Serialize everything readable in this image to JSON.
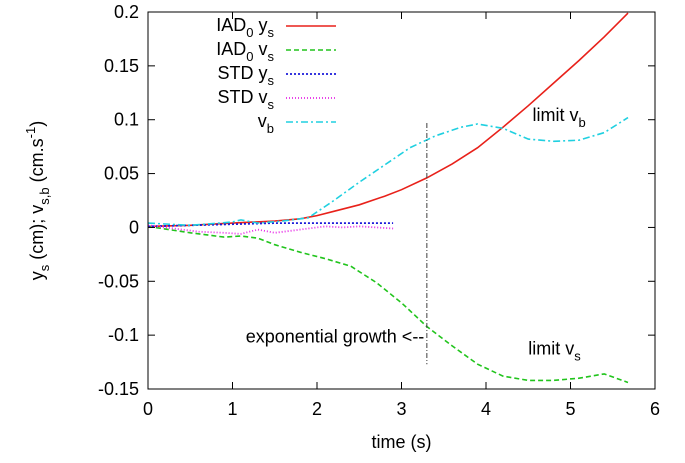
{
  "chart_data": {
    "type": "line",
    "xlabel": "time (s)",
    "ylabel": {
      "p1": "y",
      "p1_sub": "s",
      "p2": " (cm);  v",
      "p2_sub": "s,b",
      "p3": " (cm.s",
      "p3_sup": "-1",
      "p4": ")"
    },
    "xlim": [
      0,
      6
    ],
    "ylim": [
      -0.15,
      0.2
    ],
    "xticks": [
      0,
      1,
      2,
      3,
      4,
      5,
      6
    ],
    "yticks": [
      -0.15,
      -0.1,
      -0.05,
      0,
      0.05,
      0.1,
      0.15,
      0.2
    ],
    "ytick_labels": [
      "-0.15",
      "-0.1",
      "-0.05",
      "0",
      "0.05",
      "0.1",
      "0.15",
      "0.2"
    ],
    "grid": false,
    "legend_position": "top-left",
    "series": [
      {
        "name": {
          "main": "IAD",
          "sub0": "0",
          "mid": "  y",
          "sub1": "s"
        },
        "color": "#e8211a",
        "dash": "",
        "x": [
          0,
          0.5,
          1.0,
          1.5,
          1.8,
          2.0,
          2.2,
          2.5,
          2.8,
          3.0,
          3.3,
          3.6,
          3.9,
          4.2,
          4.5,
          4.8,
          5.1,
          5.4,
          5.68
        ],
        "y": [
          0.001,
          0.002,
          0.004,
          0.006,
          0.008,
          0.011,
          0.015,
          0.021,
          0.029,
          0.035,
          0.046,
          0.059,
          0.074,
          0.093,
          0.113,
          0.134,
          0.155,
          0.177,
          0.199
        ]
      },
      {
        "name": {
          "main": "IAD",
          "sub0": "0",
          "mid": "  v",
          "sub1": "s"
        },
        "color": "#21c41c",
        "dash": "5,3",
        "x": [
          0,
          0.5,
          0.9,
          1.1,
          1.3,
          1.5,
          1.8,
          2.1,
          2.4,
          2.7,
          3.0,
          3.3,
          3.6,
          3.9,
          4.2,
          4.5,
          4.8,
          5.1,
          5.4,
          5.68
        ],
        "y": [
          0.001,
          -0.005,
          -0.009,
          -0.008,
          -0.01,
          -0.016,
          -0.023,
          -0.029,
          -0.036,
          -0.051,
          -0.07,
          -0.092,
          -0.11,
          -0.127,
          -0.138,
          -0.142,
          -0.142,
          -0.14,
          -0.136,
          -0.144
        ]
      },
      {
        "name": {
          "main": "STD",
          "sub0": "",
          "mid": "  y",
          "sub1": "s"
        },
        "color": "#1a1ad9",
        "dash": "2,2",
        "x": [
          0,
          0.5,
          1.0,
          1.5,
          2.0,
          2.5,
          2.9
        ],
        "y": [
          0.001,
          0.002,
          0.003,
          0.004,
          0.004,
          0.004,
          0.004
        ]
      },
      {
        "name": {
          "main": "STD",
          "sub0": "",
          "mid": "  v",
          "sub1": "s"
        },
        "color": "#e62ae6",
        "dash": "1,2",
        "x": [
          0,
          0.3,
          0.6,
          0.9,
          1.1,
          1.3,
          1.5,
          1.7,
          1.9,
          2.1,
          2.3,
          2.5,
          2.7,
          2.9
        ],
        "y": [
          0.002,
          -0.001,
          -0.004,
          -0.005,
          -0.006,
          -0.002,
          -0.005,
          -0.003,
          -0.001,
          0.001,
          0.0,
          0.001,
          0.0,
          -0.001
        ]
      },
      {
        "name": {
          "main": "v",
          "sub0": "",
          "mid": "",
          "sub1": "b"
        },
        "color": "#20d0e0",
        "dash": "7,3,2,3",
        "x": [
          0,
          0.5,
          1.0,
          1.1,
          1.3,
          1.6,
          1.9,
          2.2,
          2.5,
          2.8,
          3.1,
          3.4,
          3.7,
          3.9,
          4.2,
          4.5,
          4.8,
          5.1,
          5.4,
          5.68
        ],
        "y": [
          0.004,
          0.002,
          0.005,
          0.007,
          0.004,
          0.006,
          0.009,
          0.025,
          0.042,
          0.058,
          0.074,
          0.085,
          0.093,
          0.096,
          0.092,
          0.082,
          0.08,
          0.081,
          0.088,
          0.102
        ]
      }
    ],
    "vline": {
      "x": 3.3,
      "y_from": -0.127,
      "y_to": 0.097,
      "color": "#404040"
    },
    "annotations": [
      {
        "id": "exp",
        "text": "exponential growth <--",
        "sub": "",
        "x": 3.27,
        "y": -0.107,
        "anchor": "end"
      },
      {
        "id": "vb",
        "text": "limit v",
        "sub": "b",
        "x": 4.55,
        "y": 0.099,
        "anchor": "start"
      },
      {
        "id": "vs",
        "text": "limit v",
        "sub": "s",
        "x": 4.5,
        "y": -0.118,
        "anchor": "start"
      }
    ]
  }
}
